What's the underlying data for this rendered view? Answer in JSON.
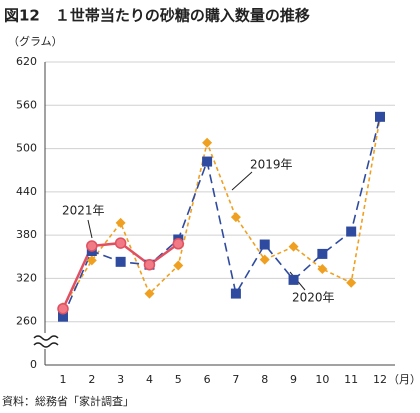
{
  "chart_data": {
    "type": "line",
    "title": "図12　１世帯当たりの砂糖の購入数量の推移",
    "y_label": "（グラム）",
    "x_label": "（月）",
    "source": "資料：総務省「家計調査」",
    "categories": [
      "1",
      "2",
      "3",
      "4",
      "5",
      "6",
      "7",
      "8",
      "9",
      "10",
      "11",
      "12"
    ],
    "series": [
      {
        "name": "2019年",
        "color": "#f0a020",
        "marker": "diamond",
        "dash": true,
        "values": [
          280,
          345,
          397,
          299,
          338,
          508,
          405,
          346,
          364,
          333,
          314,
          543
        ]
      },
      {
        "name": "2020年",
        "color": "#2f4b9f",
        "marker": "square",
        "dash": true,
        "values": [
          267,
          358,
          343,
          339,
          374,
          482,
          299,
          367,
          318,
          354,
          385,
          544
        ]
      },
      {
        "name": "2021年",
        "color": "#e05060",
        "marker": "circle",
        "dash": false,
        "values": [
          278,
          365,
          369,
          339,
          368,
          null,
          null,
          null,
          null,
          null,
          null,
          null
        ]
      }
    ],
    "ylim": [
      0,
      620
    ],
    "yticks": [
      0,
      260,
      320,
      380,
      440,
      500,
      560,
      620
    ],
    "axis_break": true,
    "grid": true
  }
}
